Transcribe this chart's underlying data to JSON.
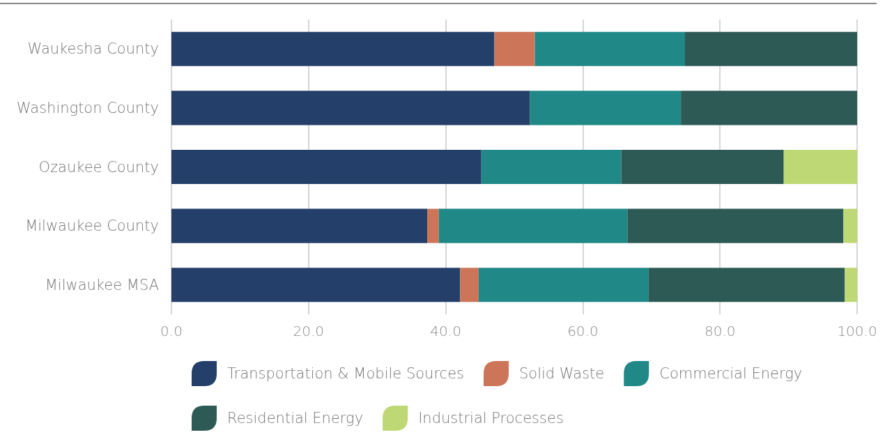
{
  "chart_data": {
    "type": "bar",
    "orientation": "horizontal",
    "stacked": true,
    "categories": [
      "Waukesha County",
      "Washington County",
      "Ozaukee County",
      "Milwaukee County",
      "Milwaukee MSA"
    ],
    "series": [
      {
        "name": "Transportation & Mobile Sources",
        "color": "#243f6a",
        "values": [
          47.1,
          52.3,
          45.2,
          37.3,
          42.1
        ]
      },
      {
        "name": "Solid Waste",
        "color": "#cc7558",
        "values": [
          5.9,
          null,
          null,
          1.7,
          2.7
        ]
      },
      {
        "name": "Commercial Energy",
        "color": "#208886",
        "values": [
          21.9,
          22.0,
          20.4,
          27.5,
          24.8
        ]
      },
      {
        "name": "Residential Energy",
        "color": "#2e5a55",
        "values": [
          25.1,
          25.7,
          23.7,
          31.5,
          28.6
        ]
      },
      {
        "name": "Industrial Processes",
        "color": "#bdd874",
        "values": [
          null,
          null,
          10.7,
          2.0,
          1.8
        ]
      }
    ],
    "xlim": [
      0,
      100
    ],
    "xticks": [
      {
        "value": 0,
        "label": "0.0"
      },
      {
        "value": 20,
        "label": "20.0"
      },
      {
        "value": 40,
        "label": "40.0"
      },
      {
        "value": 60,
        "label": "60.0"
      },
      {
        "value": 80,
        "label": "80.0"
      },
      {
        "value": 100,
        "label": "100.0"
      }
    ],
    "grid": "x",
    "legend": "bottom"
  }
}
